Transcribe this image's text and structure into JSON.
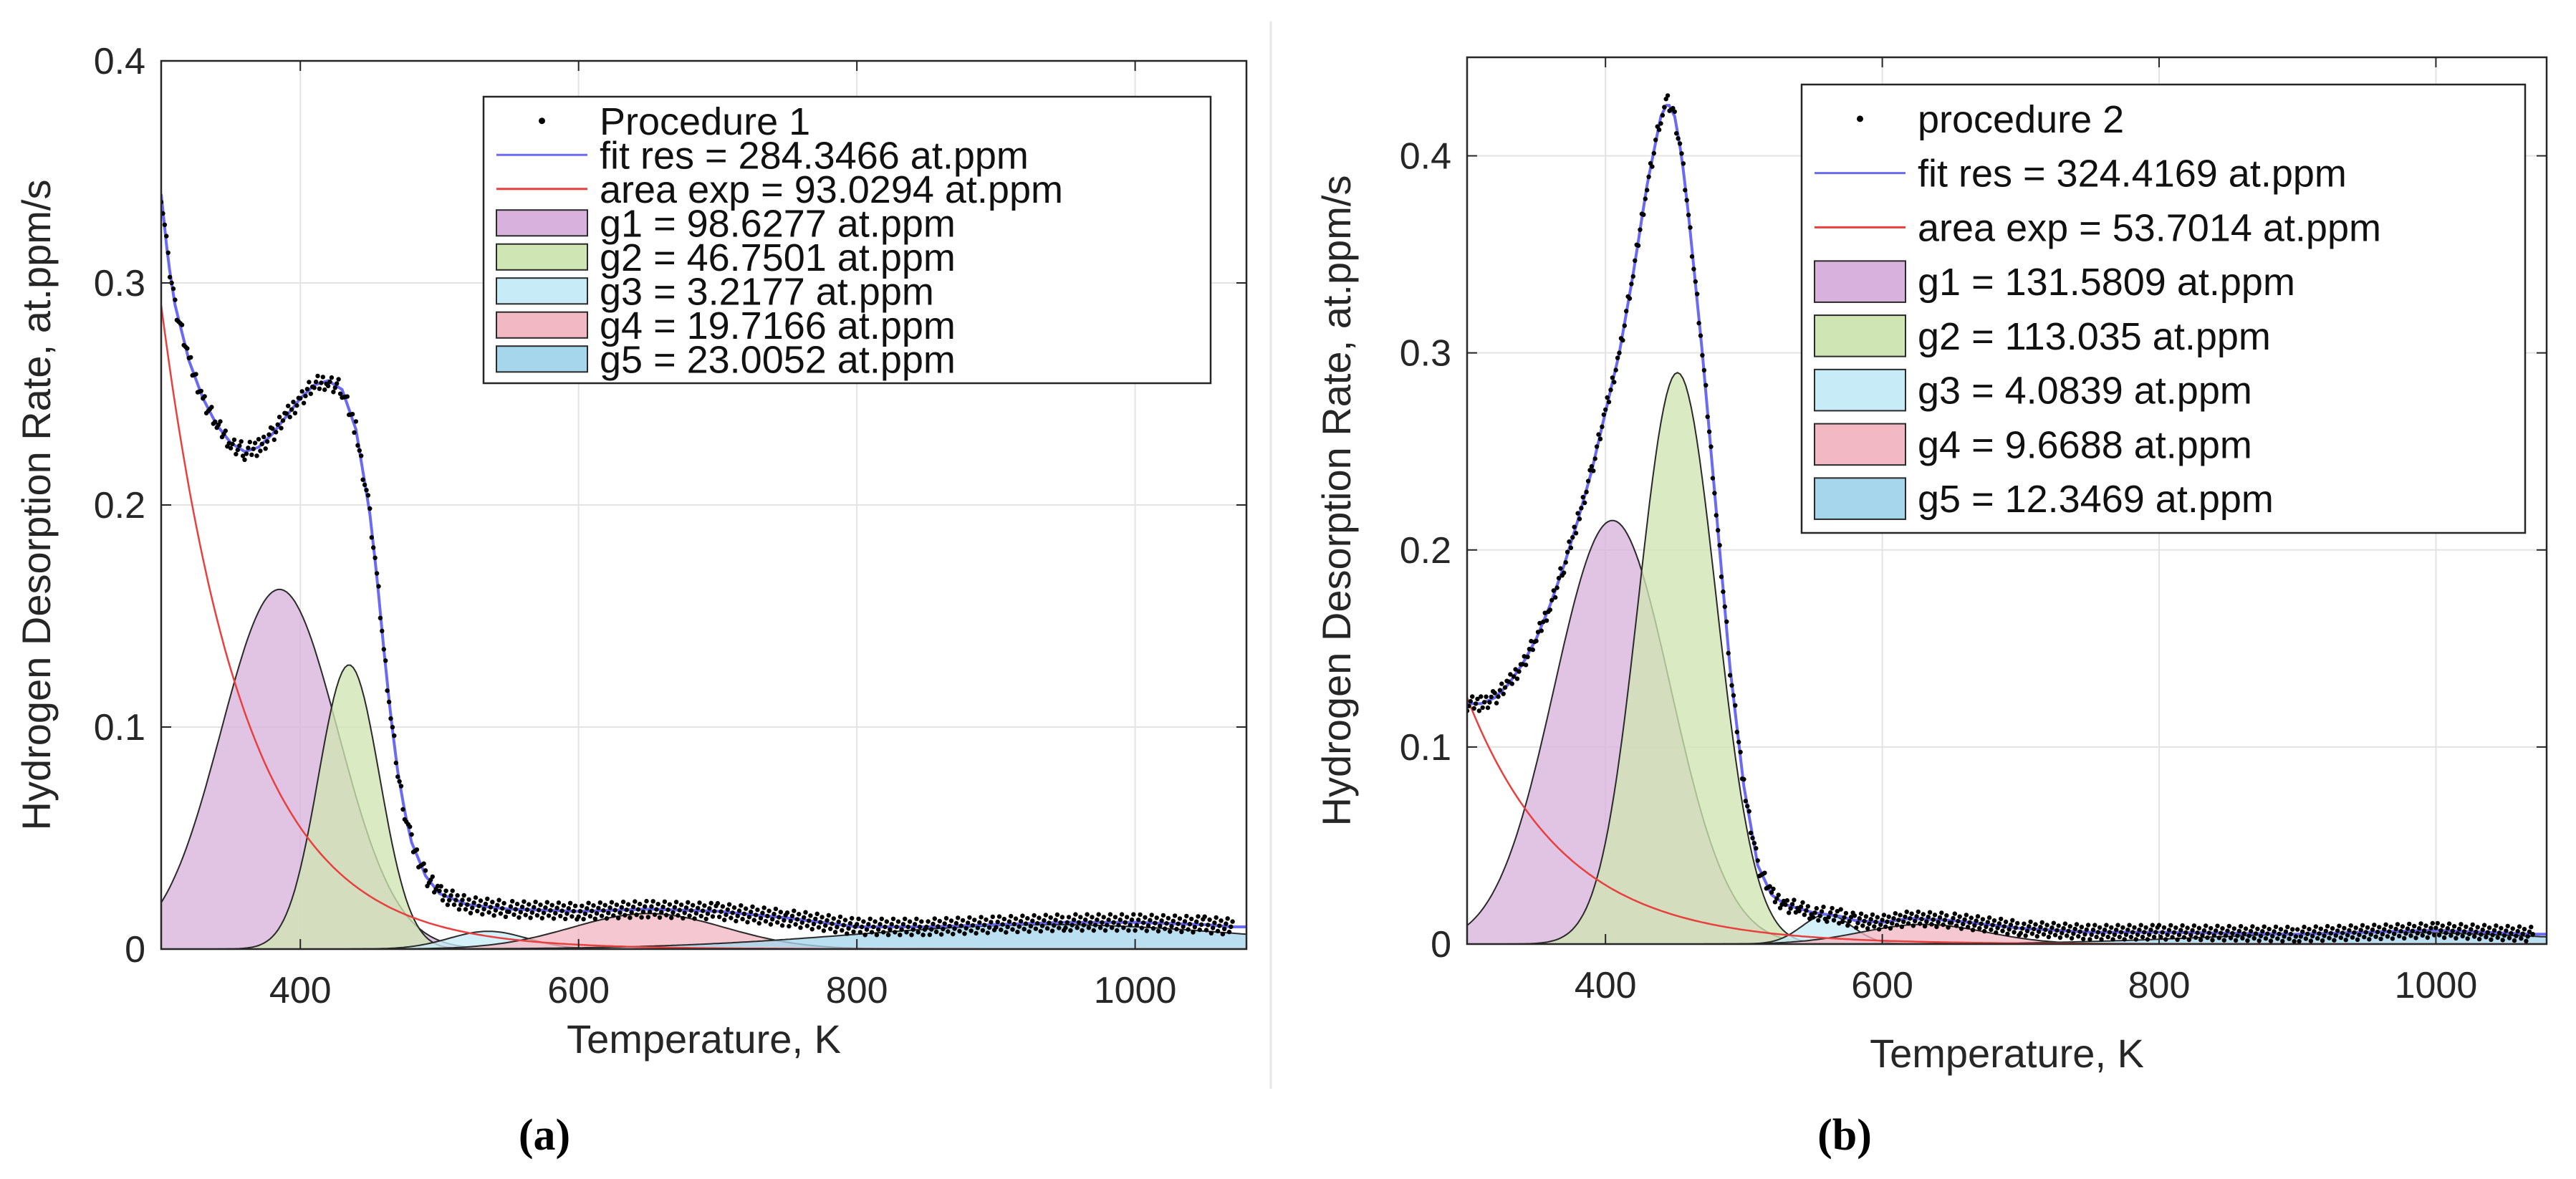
{
  "figure": {
    "separator_color": "#e6e6e6"
  },
  "colors": {
    "data": "#000000",
    "fit": "#6a6af2",
    "area": "#e8403e",
    "g1": "#d8b2dc",
    "g2": "#cfe5b4",
    "g3": "#c8ecf7",
    "g4": "#f2b8c4",
    "g5": "#a6d6ec",
    "mix12": "#b9b298",
    "grid": "#e3e3e3"
  },
  "chart_data": [
    {
      "panel_label": "(a)",
      "type": "line",
      "title": "",
      "xlabel": "Temperature, K",
      "ylabel": "Hydrogen Desorption Rate, at.ppm/s",
      "xlim": [
        300,
        1080
      ],
      "ylim": [
        0,
        0.4
      ],
      "xticks": [
        400,
        600,
        800,
        1000
      ],
      "yticks": [
        0,
        0.1,
        0.2,
        0.3,
        0.4
      ],
      "xtick_labels": [
        "400",
        "600",
        "800",
        "1000"
      ],
      "ytick_labels": [
        "0",
        "0.1",
        "0.2",
        "0.3",
        "0.4"
      ],
      "grid": true,
      "legend_position": "top-right",
      "legend": [
        {
          "key": "data",
          "kind": "dot",
          "label": "Procedure 1"
        },
        {
          "key": "fit",
          "kind": "line",
          "label": "fit res = 284.3466 at.ppm"
        },
        {
          "key": "area",
          "kind": "line",
          "label": "area exp = 93.0294 at.ppm"
        },
        {
          "key": "g1",
          "kind": "patch",
          "label": "g1 = 98.6277 at.ppm"
        },
        {
          "key": "g2",
          "kind": "patch",
          "label": "g2 = 46.7501 at.ppm"
        },
        {
          "key": "g3",
          "kind": "patch",
          "label": "g3 = 3.2177 at.ppm"
        },
        {
          "key": "g4",
          "kind": "patch",
          "label": "g4 = 19.7166 at.ppm"
        },
        {
          "key": "g5",
          "kind": "patch",
          "label": "g5 = 23.0052 at.ppm"
        }
      ],
      "gaussians": [
        {
          "name": "g1",
          "peak_T": 385,
          "amp": 0.162,
          "sigma": 42
        },
        {
          "name": "g2",
          "peak_T": 435,
          "amp": 0.128,
          "sigma": 22
        },
        {
          "name": "g3",
          "peak_T": 535,
          "amp": 0.008,
          "sigma": 28
        },
        {
          "name": "g4",
          "peak_T": 650,
          "amp": 0.016,
          "sigma": 55
        },
        {
          "name": "g5",
          "peak_T": 940,
          "amp": 0.011,
          "sigma": 140
        }
      ],
      "exp_background": {
        "a0": 0.29,
        "T0": 300,
        "tau": 60
      },
      "measured": {
        "T": [
          300,
          305,
          310,
          320,
          330,
          340,
          350,
          360,
          370,
          380,
          390,
          400,
          410,
          420,
          430,
          440,
          450,
          455,
          460,
          465,
          470,
          475,
          480,
          490,
          500,
          520,
          550,
          600,
          650,
          700,
          750,
          800,
          850,
          900,
          950,
          1000,
          1050,
          1070
        ],
        "rate": [
          0.34,
          0.31,
          0.29,
          0.265,
          0.248,
          0.236,
          0.228,
          0.224,
          0.226,
          0.232,
          0.24,
          0.248,
          0.254,
          0.256,
          0.252,
          0.234,
          0.196,
          0.168,
          0.135,
          0.105,
          0.08,
          0.062,
          0.048,
          0.033,
          0.025,
          0.02,
          0.018,
          0.017,
          0.018,
          0.017,
          0.014,
          0.01,
          0.01,
          0.011,
          0.012,
          0.012,
          0.011,
          0.01
        ]
      }
    },
    {
      "panel_label": "(b)",
      "type": "line",
      "title": "",
      "xlabel": "Temperature, K",
      "ylabel": "Hydrogen Desorption Rate, at.ppm/s",
      "xlim": [
        300,
        1080
      ],
      "ylim": [
        0,
        0.45
      ],
      "xticks": [
        400,
        600,
        800,
        1000
      ],
      "yticks": [
        0,
        0.1,
        0.2,
        0.3,
        0.4
      ],
      "xtick_labels": [
        "400",
        "600",
        "800",
        "1000"
      ],
      "ytick_labels": [
        "0",
        "0.1",
        "0.2",
        "0.3",
        "0.4"
      ],
      "grid": true,
      "legend_position": "top-right",
      "legend": [
        {
          "key": "data",
          "kind": "dot",
          "label": "procedure 2"
        },
        {
          "key": "fit",
          "kind": "line",
          "label": "fit res = 324.4169 at.ppm"
        },
        {
          "key": "area",
          "kind": "line",
          "label": "area exp = 53.7014 at.ppm"
        },
        {
          "key": "g1",
          "kind": "patch",
          "label": "g1 = 131.5809 at.ppm"
        },
        {
          "key": "g2",
          "kind": "patch",
          "label": "g2 = 113.035 at.ppm"
        },
        {
          "key": "g3",
          "kind": "patch",
          "label": "g3 = 4.0839 at.ppm"
        },
        {
          "key": "g4",
          "kind": "patch",
          "label": "g4 = 9.6688 at.ppm"
        },
        {
          "key": "g5",
          "kind": "patch",
          "label": "g5 = 12.3469 at.ppm"
        }
      ],
      "gaussians": [
        {
          "name": "g1",
          "peak_T": 405,
          "amp": 0.215,
          "sigma": 42
        },
        {
          "name": "g2",
          "peak_T": 452,
          "amp": 0.29,
          "sigma": 28
        },
        {
          "name": "g3",
          "peak_T": 560,
          "amp": 0.015,
          "sigma": 18
        },
        {
          "name": "g4",
          "peak_T": 630,
          "amp": 0.01,
          "sigma": 45
        },
        {
          "name": "g5",
          "peak_T": 960,
          "amp": 0.006,
          "sigma": 120
        }
      ],
      "exp_background": {
        "a0": 0.125,
        "T0": 300,
        "tau": 70
      },
      "measured": {
        "T": [
          300,
          310,
          320,
          330,
          340,
          350,
          360,
          370,
          380,
          390,
          400,
          410,
          420,
          430,
          440,
          445,
          450,
          455,
          460,
          470,
          480,
          490,
          500,
          510,
          520,
          530,
          540,
          550,
          560,
          570,
          580,
          600,
          620,
          650,
          700,
          750,
          800,
          900,
          1000,
          1070
        ],
        "rate": [
          0.122,
          0.122,
          0.125,
          0.132,
          0.142,
          0.155,
          0.172,
          0.192,
          0.215,
          0.24,
          0.27,
          0.3,
          0.34,
          0.385,
          0.42,
          0.427,
          0.42,
          0.4,
          0.37,
          0.3,
          0.22,
          0.14,
          0.08,
          0.04,
          0.025,
          0.02,
          0.018,
          0.016,
          0.015,
          0.014,
          0.012,
          0.011,
          0.013,
          0.012,
          0.008,
          0.006,
          0.006,
          0.005,
          0.007,
          0.005
        ]
      }
    }
  ]
}
